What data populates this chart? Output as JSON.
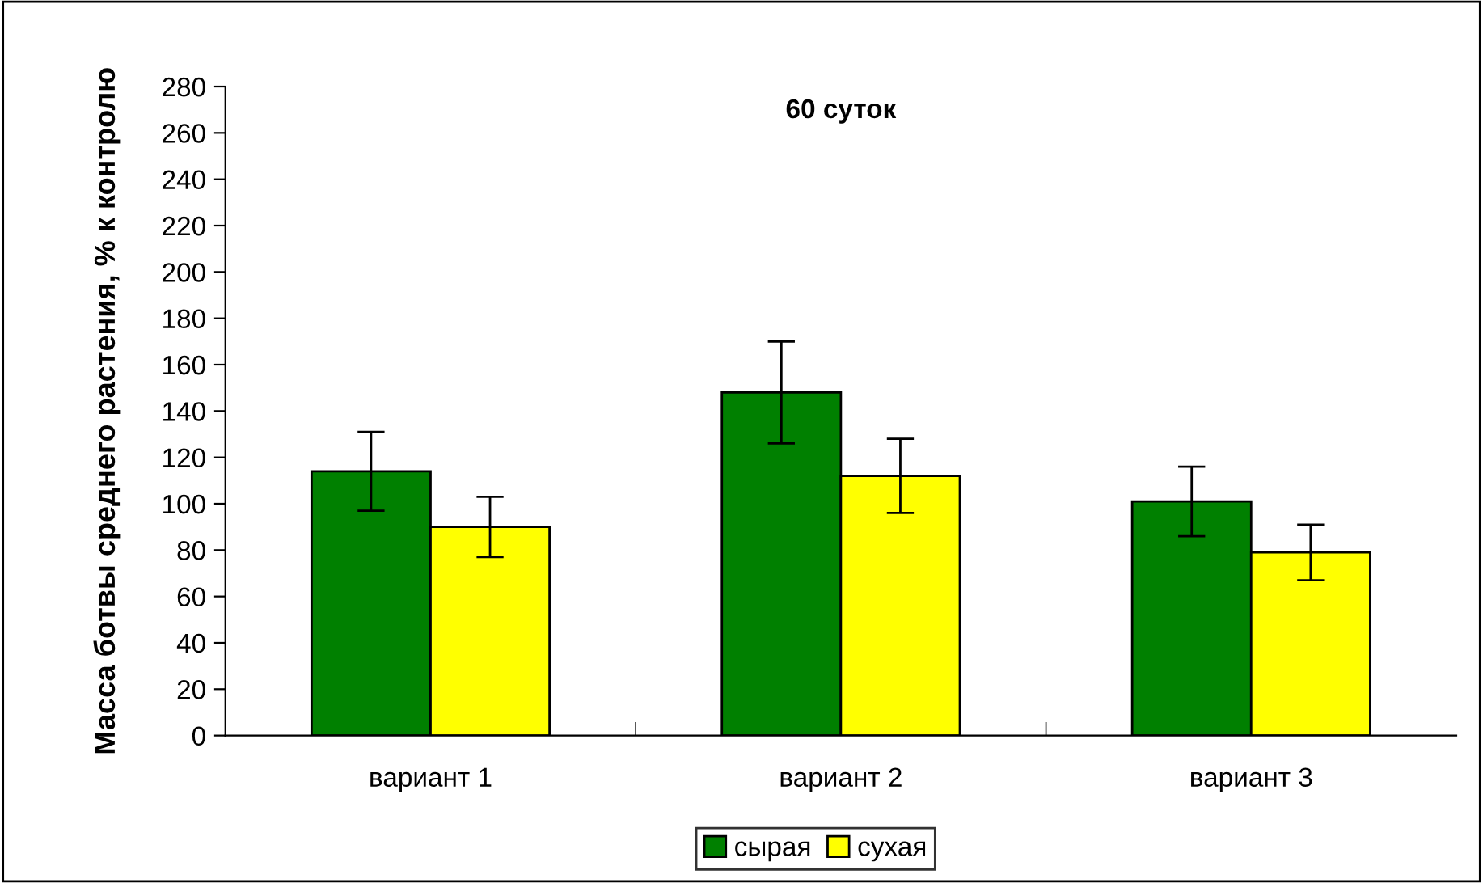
{
  "chart_data": {
    "type": "bar",
    "title": "60 суток",
    "ylabel": "Масса ботвы среднего растения, % к контролю",
    "categories": [
      "вариант 1",
      "вариант 2",
      "вариант 3"
    ],
    "series": [
      {
        "name": "сырая",
        "color": "#008000",
        "values": [
          114,
          148,
          101
        ],
        "errors": [
          17,
          22,
          15
        ]
      },
      {
        "name": "сухая",
        "color": "#ffff00",
        "values": [
          90,
          112,
          79
        ],
        "errors": [
          13,
          16,
          12
        ]
      }
    ],
    "ylim": [
      0,
      280
    ],
    "yticks": [
      0,
      20,
      40,
      60,
      80,
      100,
      120,
      140,
      160,
      180,
      200,
      220,
      240,
      260,
      280
    ],
    "grid": false,
    "legend": "bottom"
  }
}
